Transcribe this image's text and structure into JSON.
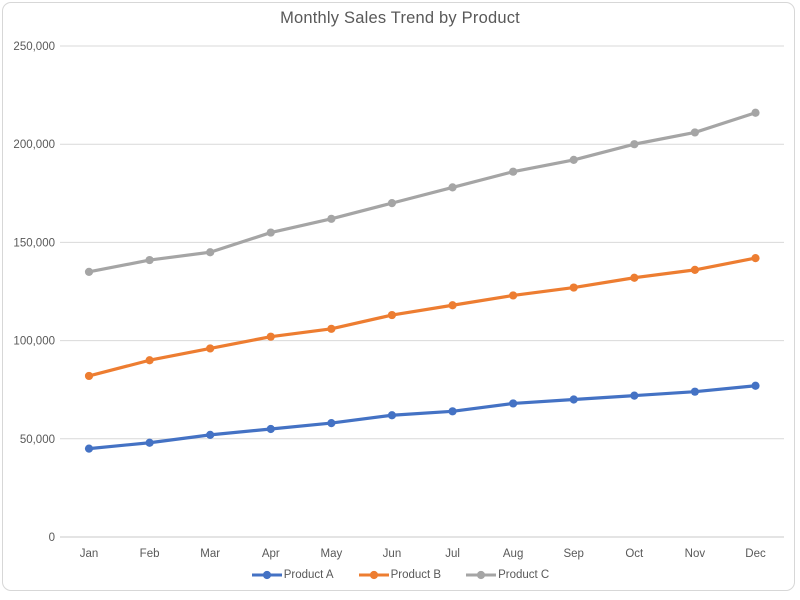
{
  "chart_data": {
    "type": "line",
    "title": "Monthly Sales Trend by Product",
    "categories": [
      "Jan",
      "Feb",
      "Mar",
      "Apr",
      "May",
      "Jun",
      "Jul",
      "Aug",
      "Sep",
      "Oct",
      "Nov",
      "Dec"
    ],
    "series": [
      {
        "name": "Product A",
        "color": "#4472C4",
        "values": [
          45000,
          48000,
          52000,
          55000,
          58000,
          62000,
          64000,
          68000,
          70000,
          72000,
          74000,
          77000
        ]
      },
      {
        "name": "Product B",
        "color": "#ED7D31",
        "values": [
          82000,
          90000,
          96000,
          102000,
          106000,
          113000,
          118000,
          123000,
          127000,
          132000,
          136000,
          142000
        ]
      },
      {
        "name": "Product C",
        "color": "#A5A5A5",
        "values": [
          135000,
          141000,
          145000,
          155000,
          162000,
          170000,
          178000,
          186000,
          192000,
          200000,
          206000,
          216000
        ]
      }
    ],
    "xlabel": "",
    "ylabel": "",
    "ylim": [
      0,
      250000
    ],
    "ytick_interval": 50000,
    "ytick_labels": [
      "0",
      "50,000",
      "100,000",
      "150,000",
      "200,000",
      "250,000"
    ],
    "grid": "horizontal",
    "legend_position": "bottom",
    "marker": "circle"
  },
  "colors": {
    "series_a": "#4472C4",
    "series_b": "#ED7D31",
    "series_c": "#A5A5A5",
    "text": "#595959",
    "gridline": "#D9D9D9",
    "axis_line": "#C9C9C9",
    "frame_border": "#D7D7D7",
    "background": "#FFFFFF"
  }
}
